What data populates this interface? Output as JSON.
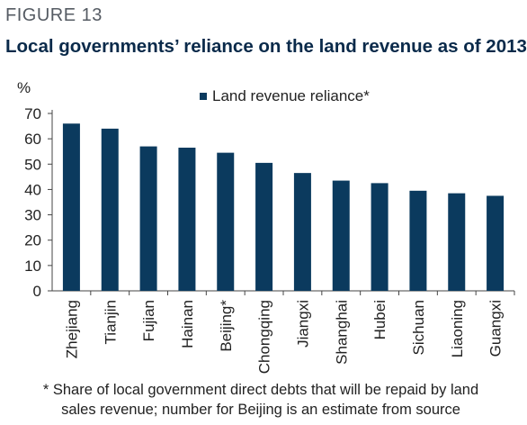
{
  "figure_label": "FIGURE 13",
  "title": "Local governments’ reliance on the land revenue as of 2013",
  "footnote_lines": [
    "* Share of local government direct debts that will be repaid by land",
    "sales revenue; number for Beijing is an estimate from source"
  ],
  "colors": {
    "bar": "#0b3a5e",
    "axis": "#444444",
    "text": "#222222",
    "title": "#0a2a4a"
  },
  "chart_data": {
    "type": "bar",
    "title": "Local governments’ reliance on the land revenue as of 2013",
    "xlabel": "",
    "ylabel": "%",
    "ylim": [
      0,
      70
    ],
    "yticks": [
      0,
      10,
      20,
      30,
      40,
      50,
      60,
      70
    ],
    "grid": false,
    "legend_position": "top-center",
    "categories": [
      "Zhejiang",
      "Tianjin",
      "Fujian",
      "Hainan",
      "Beijing*",
      "Chongqing",
      "Jiangxi",
      "Shanghai",
      "Hubei",
      "Sichuan",
      "Liaoning",
      "Guangxi"
    ],
    "series": [
      {
        "name": "Land revenue reliance*",
        "values": [
          66,
          64,
          57,
          56.5,
          54.5,
          50.5,
          46.5,
          43.5,
          42.5,
          39.5,
          38.5,
          37.5
        ]
      }
    ]
  }
}
